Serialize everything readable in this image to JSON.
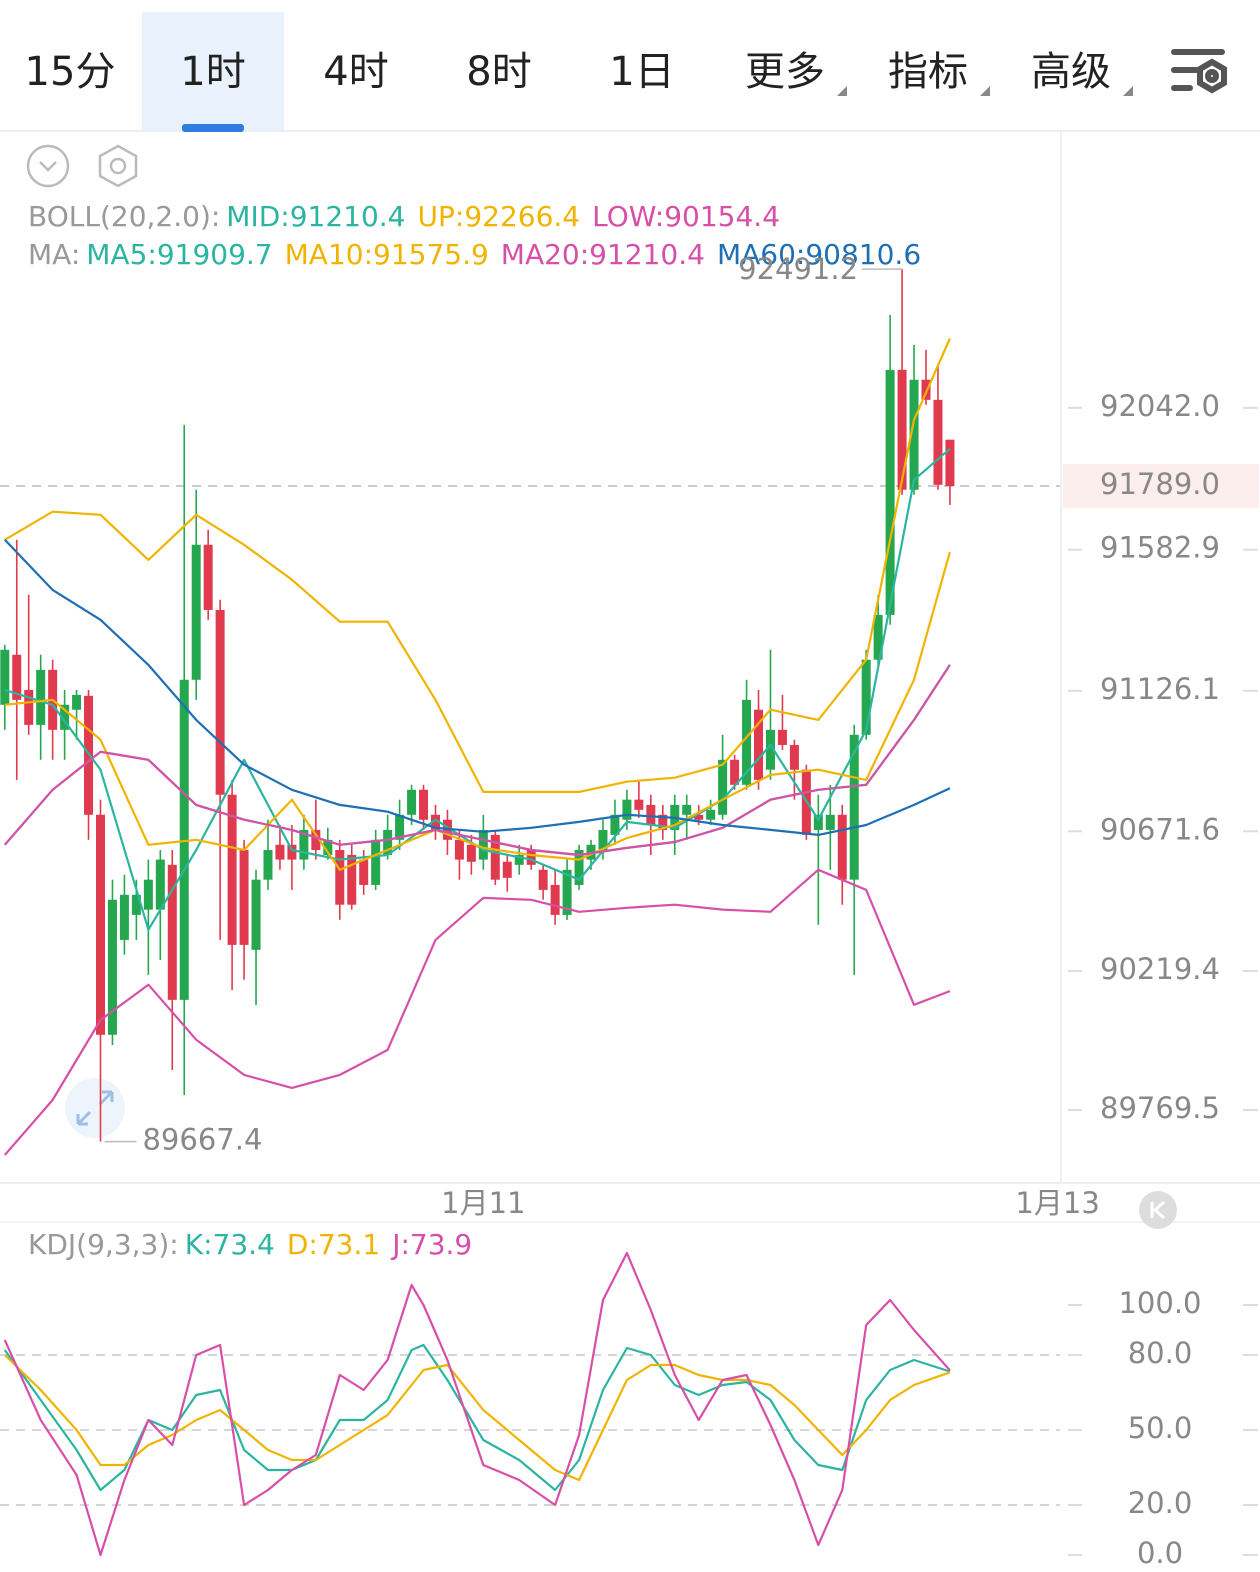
{
  "tabs": [
    "15分",
    "1时",
    "4时",
    "8时",
    "1日",
    "更多",
    "指标",
    "高级"
  ],
  "selected_tab": 1,
  "chart_data": [
    {
      "type": "candlestick",
      "xlim": [
        -0.4,
        88.2
      ],
      "xticks": [
        {
          "value": 40,
          "label": "1月11"
        },
        {
          "value": 88,
          "label": "1月13"
        }
      ],
      "ylim": [
        89543,
        92909
      ],
      "yticks": [
        {
          "value": 92042,
          "label": "92042.0"
        },
        {
          "value": 91582.9,
          "label": "91582.9"
        },
        {
          "value": 91126.1,
          "label": "91126.1"
        },
        {
          "value": 90671.6,
          "label": "90671.6"
        },
        {
          "value": 90219.4,
          "label": "90219.4"
        },
        {
          "value": 89769.5,
          "label": "89769.5"
        }
      ],
      "last_price": {
        "value": 91789,
        "label": "91789.0"
      },
      "high_label": 92491.2,
      "low_label": 89667.4,
      "up_color": "#25a750",
      "down_color": "#e03a4e",
      "candles": [
        [
          91081,
          91275,
          91000,
          91259
        ],
        [
          91243,
          91615,
          90838,
          91097
        ],
        [
          91129,
          91437,
          90984,
          91016
        ],
        [
          91016,
          91243,
          90903,
          91194
        ],
        [
          91194,
          91227,
          90903,
          91000
        ],
        [
          91000,
          91129,
          90903,
          91081
        ],
        [
          91065,
          91129,
          90968,
          91113
        ],
        [
          91110,
          91129,
          90644,
          90725
        ],
        [
          90725,
          90774,
          89667.4,
          90013
        ],
        [
          90013,
          90515,
          89980,
          90450
        ],
        [
          90320,
          90531,
          90272,
          90466
        ],
        [
          90401,
          90515,
          90320,
          90466
        ],
        [
          90418,
          90580,
          90207,
          90515
        ],
        [
          90418,
          90611,
          90255,
          90580
        ],
        [
          90563,
          90611,
          89899,
          90126
        ],
        [
          90126,
          91987,
          89818,
          91162
        ],
        [
          91162,
          91777,
          91097,
          91599
        ],
        [
          91599,
          91647,
          91356,
          91388
        ],
        [
          91388,
          91421,
          90320,
          90790
        ],
        [
          90790,
          90838,
          90158,
          90304
        ],
        [
          90611,
          90644,
          90191,
          90304
        ],
        [
          90288,
          90547,
          90109,
          90515
        ],
        [
          90515,
          90709,
          90482,
          90611
        ],
        [
          90628,
          90692,
          90547,
          90580
        ],
        [
          90628,
          90692,
          90482,
          90580
        ],
        [
          90580,
          90725,
          90547,
          90676
        ],
        [
          90676,
          90774,
          90580,
          90611
        ],
        [
          90595,
          90683,
          90580,
          90644
        ],
        [
          90611,
          90644,
          90385,
          90434
        ],
        [
          90595,
          90628,
          90418,
          90434
        ],
        [
          90580,
          90611,
          90466,
          90498
        ],
        [
          90498,
          90676,
          90482,
          90644
        ],
        [
          90595,
          90725,
          90580,
          90676
        ],
        [
          90644,
          90774,
          90611,
          90725
        ],
        [
          90725,
          90822,
          90692,
          90806
        ],
        [
          90806,
          90822,
          90676,
          90709
        ],
        [
          90725,
          90757,
          90644,
          90676
        ],
        [
          90709,
          90741,
          90595,
          90644
        ],
        [
          90644,
          90676,
          90515,
          90580
        ],
        [
          90628,
          90660,
          90531,
          90573
        ],
        [
          90580,
          90725,
          90547,
          90676
        ],
        [
          90660,
          90676,
          90498,
          90515
        ],
        [
          90573,
          90595,
          90476,
          90521
        ],
        [
          90563,
          90628,
          90531,
          90595
        ],
        [
          90611,
          90628,
          90547,
          90563
        ],
        [
          90547,
          90563,
          90450,
          90482
        ],
        [
          90498,
          90547,
          90369,
          90401
        ],
        [
          90401,
          90580,
          90385,
          90547
        ],
        [
          90498,
          90628,
          90482,
          90611
        ],
        [
          90580,
          90644,
          90547,
          90628
        ],
        [
          90611,
          90709,
          90580,
          90676
        ],
        [
          90660,
          90774,
          90628,
          90725
        ],
        [
          90709,
          90806,
          90676,
          90774
        ],
        [
          90774,
          90838,
          90715,
          90741
        ],
        [
          90757,
          90790,
          90595,
          90692
        ],
        [
          90725,
          90757,
          90644,
          90676
        ],
        [
          90676,
          90790,
          90595,
          90757
        ],
        [
          90725,
          90790,
          90644,
          90757
        ],
        [
          90725,
          90757,
          90692,
          90709
        ],
        [
          90709,
          90774,
          90692,
          90741
        ],
        [
          90725,
          90984,
          90709,
          90903
        ],
        [
          90903,
          90919,
          90806,
          90822
        ],
        [
          90822,
          91162,
          90806,
          91097
        ],
        [
          91065,
          91129,
          90806,
          90838
        ],
        [
          90871,
          91259,
          90838,
          91000
        ],
        [
          91000,
          91113,
          90935,
          90951
        ],
        [
          90951,
          90968,
          90774,
          90871
        ],
        [
          90871,
          90887,
          90644,
          90660
        ],
        [
          90676,
          90790,
          90369,
          90725
        ],
        [
          90676,
          90822,
          90547,
          90725
        ],
        [
          90725,
          90757,
          90434,
          90515
        ],
        [
          90515,
          91016,
          90207,
          90984
        ],
        [
          90984,
          91259,
          90968,
          91227
        ],
        [
          91227,
          91437,
          91210,
          91372
        ],
        [
          91372,
          92343,
          91340,
          92165
        ],
        [
          92165,
          92491.2,
          91761,
          91777
        ],
        [
          91777,
          92246,
          91761,
          92133
        ],
        [
          92133,
          92230,
          92052,
          92068
        ],
        [
          92068,
          92181,
          91777,
          91793
        ],
        [
          91939,
          91939,
          91728,
          91789.0
        ]
      ],
      "line_x": [
        0,
        4,
        8,
        12,
        16,
        20,
        24,
        28,
        32,
        36,
        40,
        44,
        48,
        52,
        56,
        60,
        64,
        68,
        72,
        76,
        79
      ],
      "overlays": [
        {
          "label": "BOLL(20,2.0):",
          "series": [
            {
              "name": "MID:91210.4",
              "color": "#2bb5a0",
              "values": [
                90628,
                90806,
                90929,
                90903,
                90757,
                90709,
                90676,
                90628,
                90644,
                90676,
                90644,
                90611,
                90595,
                90618,
                90637,
                90683,
                90774,
                90806,
                90822,
                91032,
                91210.4
              ]
            },
            {
              "name": "UP:92266.4",
              "color": "#f0b400",
              "values": [
                91615,
                91706,
                91696,
                91550,
                91696,
                91599,
                91486,
                91350,
                91350,
                91097,
                90799,
                90799,
                90799,
                90832,
                90845,
                90887,
                91065,
                91032,
                91227,
                92003,
                92266.4
              ]
            },
            {
              "name": "LOW:90154.4",
              "color": "#d84fa8",
              "values": [
                89624,
                89802,
                90061,
                90175,
                89997,
                89883,
                89841,
                89883,
                89964,
                90320,
                90456,
                90450,
                90411,
                90424,
                90434,
                90418,
                90411,
                90547,
                90482,
                90110,
                90154.4
              ]
            }
          ]
        },
        {
          "label": "MA:",
          "series": [
            {
              "name": "MA5:91909.7",
              "color": "#2bb5a0",
              "values": [
                91129,
                91081,
                90871,
                90353,
                90611,
                90903,
                90611,
                90580,
                90595,
                90709,
                90611,
                90580,
                90515,
                90702,
                90683,
                90774,
                90951,
                90709,
                91000,
                91809,
                91909.7
              ]
            },
            {
              "name": "MA10:91575.9",
              "color": "#f0b400",
              "values": [
                91081,
                91097,
                90968,
                90628,
                90644,
                90611,
                90774,
                90547,
                90611,
                90676,
                90618,
                90595,
                90580,
                90650,
                90692,
                90774,
                90854,
                90871,
                90838,
                91162,
                91575.9
              ]
            },
            {
              "name": "MA20:91210.4",
              "color": "#d84fa8",
              "values": [
                90628,
                90806,
                90929,
                90903,
                90757,
                90709,
                90676,
                90628,
                90644,
                90676,
                90644,
                90611,
                90595,
                90618,
                90637,
                90683,
                90774,
                90806,
                90822,
                91032,
                91210.4
              ]
            },
            {
              "name": "MA60:90810.6",
              "color": "#1f6fb5",
              "values": [
                91615,
                91453,
                91356,
                91210,
                91032,
                90887,
                90806,
                90757,
                90735,
                90683,
                90670,
                90683,
                90702,
                90725,
                90715,
                90692,
                90676,
                90660,
                90692,
                90757,
                90810.6
              ]
            }
          ]
        }
      ]
    },
    {
      "type": "line",
      "label": "KDJ(9,3,3):",
      "xlim": [
        -0.4,
        88.2
      ],
      "ylim": [
        -6.8,
        130
      ],
      "yticks": [
        {
          "value": 100,
          "label": "100.0"
        },
        {
          "value": 80,
          "label": "80.0"
        },
        {
          "value": 50,
          "label": "50.0"
        },
        {
          "value": 20,
          "label": "20.0"
        },
        {
          "value": 0,
          "label": "0.0"
        }
      ],
      "dashed_levels": [
        80,
        50,
        20
      ],
      "x": [
        0,
        3,
        6,
        8,
        10,
        12,
        14,
        16,
        18,
        20,
        22,
        24,
        26,
        28,
        30,
        32,
        34,
        35,
        37,
        40,
        43,
        46,
        48,
        50,
        52,
        54,
        56,
        58,
        60,
        62,
        64,
        66,
        68,
        70,
        72,
        74,
        76,
        79
      ],
      "series": [
        {
          "name": "K:73.4",
          "color": "#2bb5a0",
          "values": [
            82,
            62,
            42,
            26,
            34,
            54,
            50,
            64,
            66,
            42,
            34,
            34,
            38,
            54,
            54,
            62,
            82,
            84,
            70,
            46,
            38,
            26,
            38,
            66,
            82.8,
            80,
            68,
            64,
            68,
            69.2,
            62,
            46,
            36,
            34,
            62,
            74,
            78,
            73.4
          ]
        },
        {
          "name": "D:73.1",
          "color": "#f0b400",
          "values": [
            80,
            66,
            50,
            36,
            36,
            44,
            48,
            54,
            58,
            50,
            42,
            38,
            38,
            44,
            50,
            56,
            68,
            74,
            76,
            58,
            46,
            34,
            30,
            50,
            70,
            76,
            76,
            72,
            70,
            70,
            68,
            60,
            50,
            40,
            50,
            62,
            68,
            73.1
          ]
        },
        {
          "name": "J:73.9",
          "color": "#d84fa8",
          "values": [
            86,
            54,
            32,
            0,
            30,
            54,
            44,
            80,
            84,
            20,
            26,
            34,
            40,
            72,
            66,
            78,
            108,
            100,
            78,
            36,
            30,
            20,
            48,
            102,
            120.8,
            98,
            72,
            54,
            70,
            72,
            52,
            30,
            4,
            26,
            92,
            102,
            90,
            73.9
          ]
        }
      ]
    }
  ]
}
